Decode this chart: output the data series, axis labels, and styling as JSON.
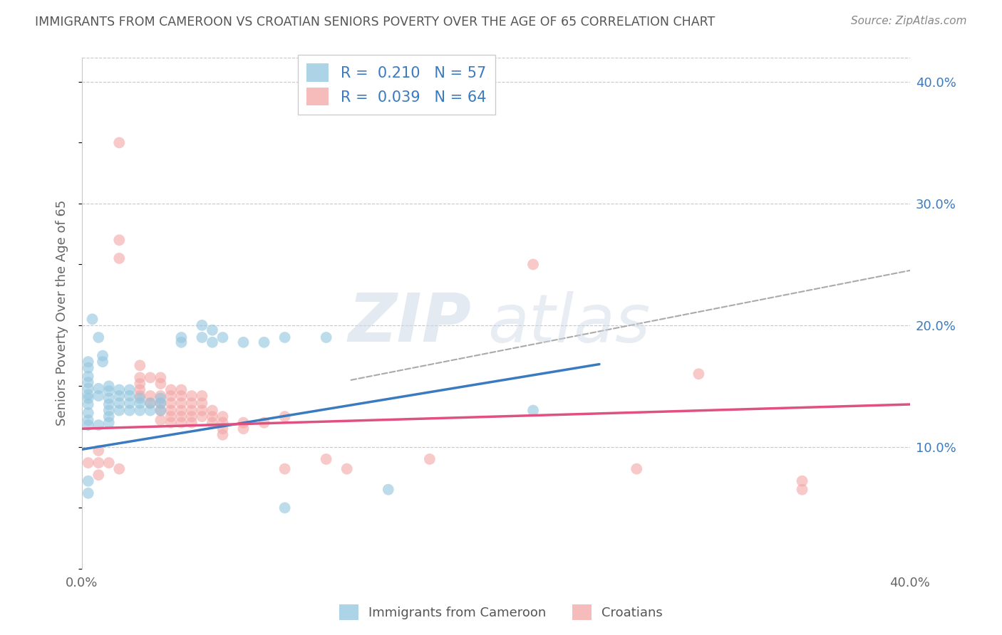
{
  "title": "IMMIGRANTS FROM CAMEROON VS CROATIAN SENIORS POVERTY OVER THE AGE OF 65 CORRELATION CHART",
  "source": "Source: ZipAtlas.com",
  "ylabel": "Seniors Poverty Over the Age of 65",
  "xlim": [
    0.0,
    0.4
  ],
  "ylim": [
    0.0,
    0.42
  ],
  "yticks": [
    0.1,
    0.2,
    0.3,
    0.4
  ],
  "ytick_labels": [
    "10.0%",
    "20.0%",
    "30.0%",
    "40.0%"
  ],
  "legend_label1": "Immigrants from Cameroon",
  "legend_label2": "Croatians",
  "R1": 0.21,
  "N1": 57,
  "R2": 0.039,
  "N2": 64,
  "color_blue": "#92c5de",
  "color_pink": "#f4a6a6",
  "color_blue_line": "#3a7abf",
  "color_pink_line": "#e05080",
  "blue_line": [
    [
      0.0,
      0.098
    ],
    [
      0.25,
      0.168
    ]
  ],
  "pink_line": [
    [
      0.0,
      0.115
    ],
    [
      0.4,
      0.135
    ]
  ],
  "dash_line": [
    [
      0.13,
      0.155
    ],
    [
      0.4,
      0.245
    ]
  ],
  "scatter_blue": [
    [
      0.005,
      0.205
    ],
    [
      0.008,
      0.19
    ],
    [
      0.01,
      0.175
    ],
    [
      0.01,
      0.17
    ],
    [
      0.003,
      0.17
    ],
    [
      0.003,
      0.165
    ],
    [
      0.003,
      0.158
    ],
    [
      0.003,
      0.153
    ],
    [
      0.003,
      0.148
    ],
    [
      0.003,
      0.143
    ],
    [
      0.008,
      0.148
    ],
    [
      0.008,
      0.142
    ],
    [
      0.003,
      0.14
    ],
    [
      0.003,
      0.135
    ],
    [
      0.003,
      0.128
    ],
    [
      0.003,
      0.122
    ],
    [
      0.003,
      0.118
    ],
    [
      0.008,
      0.118
    ],
    [
      0.013,
      0.15
    ],
    [
      0.013,
      0.146
    ],
    [
      0.013,
      0.14
    ],
    [
      0.013,
      0.135
    ],
    [
      0.013,
      0.13
    ],
    [
      0.013,
      0.125
    ],
    [
      0.013,
      0.12
    ],
    [
      0.018,
      0.147
    ],
    [
      0.018,
      0.142
    ],
    [
      0.018,
      0.136
    ],
    [
      0.018,
      0.13
    ],
    [
      0.023,
      0.147
    ],
    [
      0.023,
      0.142
    ],
    [
      0.023,
      0.136
    ],
    [
      0.023,
      0.13
    ],
    [
      0.028,
      0.14
    ],
    [
      0.028,
      0.136
    ],
    [
      0.028,
      0.13
    ],
    [
      0.033,
      0.136
    ],
    [
      0.033,
      0.13
    ],
    [
      0.038,
      0.14
    ],
    [
      0.038,
      0.136
    ],
    [
      0.038,
      0.13
    ],
    [
      0.048,
      0.19
    ],
    [
      0.048,
      0.186
    ],
    [
      0.058,
      0.2
    ],
    [
      0.058,
      0.19
    ],
    [
      0.063,
      0.196
    ],
    [
      0.063,
      0.186
    ],
    [
      0.068,
      0.19
    ],
    [
      0.078,
      0.186
    ],
    [
      0.088,
      0.186
    ],
    [
      0.098,
      0.19
    ],
    [
      0.118,
      0.19
    ],
    [
      0.098,
      0.05
    ],
    [
      0.148,
      0.065
    ],
    [
      0.218,
      0.13
    ],
    [
      0.003,
      0.072
    ],
    [
      0.003,
      0.062
    ]
  ],
  "scatter_pink": [
    [
      0.018,
      0.35
    ],
    [
      0.018,
      0.27
    ],
    [
      0.018,
      0.255
    ],
    [
      0.028,
      0.167
    ],
    [
      0.028,
      0.157
    ],
    [
      0.028,
      0.152
    ],
    [
      0.028,
      0.147
    ],
    [
      0.028,
      0.142
    ],
    [
      0.033,
      0.157
    ],
    [
      0.033,
      0.142
    ],
    [
      0.033,
      0.136
    ],
    [
      0.038,
      0.157
    ],
    [
      0.038,
      0.152
    ],
    [
      0.038,
      0.142
    ],
    [
      0.038,
      0.136
    ],
    [
      0.038,
      0.13
    ],
    [
      0.038,
      0.122
    ],
    [
      0.043,
      0.147
    ],
    [
      0.043,
      0.142
    ],
    [
      0.043,
      0.136
    ],
    [
      0.043,
      0.13
    ],
    [
      0.043,
      0.125
    ],
    [
      0.043,
      0.12
    ],
    [
      0.048,
      0.147
    ],
    [
      0.048,
      0.142
    ],
    [
      0.048,
      0.136
    ],
    [
      0.048,
      0.13
    ],
    [
      0.048,
      0.125
    ],
    [
      0.048,
      0.12
    ],
    [
      0.053,
      0.142
    ],
    [
      0.053,
      0.136
    ],
    [
      0.053,
      0.13
    ],
    [
      0.053,
      0.125
    ],
    [
      0.053,
      0.12
    ],
    [
      0.058,
      0.142
    ],
    [
      0.058,
      0.136
    ],
    [
      0.058,
      0.13
    ],
    [
      0.058,
      0.125
    ],
    [
      0.063,
      0.13
    ],
    [
      0.063,
      0.125
    ],
    [
      0.063,
      0.12
    ],
    [
      0.068,
      0.125
    ],
    [
      0.068,
      0.12
    ],
    [
      0.068,
      0.115
    ],
    [
      0.068,
      0.11
    ],
    [
      0.078,
      0.12
    ],
    [
      0.078,
      0.115
    ],
    [
      0.088,
      0.12
    ],
    [
      0.098,
      0.125
    ],
    [
      0.098,
      0.082
    ],
    [
      0.118,
      0.09
    ],
    [
      0.128,
      0.082
    ],
    [
      0.168,
      0.09
    ],
    [
      0.218,
      0.25
    ],
    [
      0.298,
      0.16
    ],
    [
      0.268,
      0.082
    ],
    [
      0.348,
      0.072
    ],
    [
      0.348,
      0.065
    ],
    [
      0.008,
      0.097
    ],
    [
      0.008,
      0.087
    ],
    [
      0.008,
      0.077
    ],
    [
      0.013,
      0.087
    ],
    [
      0.018,
      0.082
    ],
    [
      0.003,
      0.087
    ]
  ],
  "watermark_zip": "ZIP",
  "watermark_atlas": "atlas",
  "background_color": "#ffffff",
  "grid_color": "#c8c8c8"
}
